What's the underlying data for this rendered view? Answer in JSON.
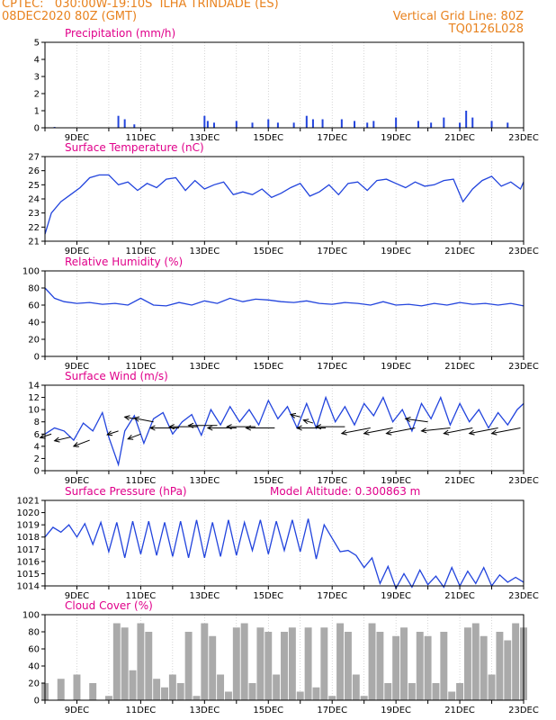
{
  "header": {
    "line1": "CPTEC:   030:00W-19:10S  ILHA TRINDADE (ES)",
    "line2": "08DEC2020 80Z (GMT)",
    "grid_line": "Vertical Grid Line: 80Z",
    "run_id": "TQ0126L028"
  },
  "colors": {
    "header_text": "#e8821e",
    "panel_title": "#e0008a",
    "series_line": "#2244dd",
    "cloud_fill": "#aaaaaa",
    "wind_arrow": "#000000"
  },
  "x_ticks": [
    "9DEC",
    "11DEC",
    "13DEC",
    "15DEC",
    "17DEC",
    "19DEC",
    "21DEC",
    "23DEC"
  ],
  "chart_data": [
    {
      "id": "precip",
      "type": "bar",
      "title": "Precipitation (mm/h)",
      "ylim": [
        0,
        5
      ],
      "yticks": [
        0,
        1,
        2,
        3,
        4,
        5
      ],
      "x_ticks": [
        "9DEC",
        "11DEC",
        "13DEC",
        "15DEC",
        "17DEC",
        "19DEC",
        "21DEC",
        "23DEC"
      ],
      "x": [
        8.3,
        10.3,
        10.5,
        10.8,
        13.0,
        13.1,
        13.3,
        14.0,
        14.5,
        15.0,
        15.3,
        15.8,
        16.2,
        16.4,
        16.7,
        17.3,
        17.7,
        18.1,
        18.3,
        19.0,
        19.7,
        20.1,
        20.5,
        21.0,
        21.2,
        21.4,
        22.0,
        22.5
      ],
      "values": [
        0.05,
        0.7,
        0.5,
        0.2,
        0.7,
        0.4,
        0.3,
        0.4,
        0.3,
        0.5,
        0.3,
        0.3,
        0.7,
        0.5,
        0.5,
        0.5,
        0.4,
        0.3,
        0.4,
        0.6,
        0.4,
        0.3,
        0.6,
        0.3,
        1.0,
        0.6,
        0.4,
        0.3
      ]
    },
    {
      "id": "temp",
      "type": "line",
      "title": "Surface Temperature (nC)",
      "ylim": [
        21,
        27
      ],
      "yticks": [
        21,
        22,
        23,
        24,
        25,
        26,
        27
      ],
      "x_ticks": [
        "9DEC",
        "11DEC",
        "13DEC",
        "15DEC",
        "17DEC",
        "19DEC",
        "21DEC",
        "23DEC"
      ],
      "x": [
        8.0,
        8.2,
        8.5,
        8.8,
        9.1,
        9.4,
        9.7,
        10.0,
        10.3,
        10.6,
        10.9,
        11.2,
        11.5,
        11.8,
        12.1,
        12.4,
        12.7,
        13.0,
        13.3,
        13.6,
        13.9,
        14.2,
        14.5,
        14.8,
        15.1,
        15.4,
        15.7,
        16.0,
        16.3,
        16.6,
        16.9,
        17.2,
        17.5,
        17.8,
        18.1,
        18.4,
        18.7,
        19.0,
        19.3,
        19.6,
        19.9,
        20.2,
        20.5,
        20.8,
        21.1,
        21.4,
        21.7,
        22.0,
        22.3,
        22.6,
        22.9,
        23.0
      ],
      "values": [
        21.5,
        23.0,
        23.8,
        24.3,
        24.8,
        25.5,
        25.7,
        25.7,
        25.0,
        25.2,
        24.6,
        25.1,
        24.8,
        25.4,
        25.5,
        24.6,
        25.3,
        24.7,
        25.0,
        25.2,
        24.3,
        24.5,
        24.3,
        24.7,
        24.1,
        24.4,
        24.8,
        25.1,
        24.2,
        24.5,
        25.0,
        24.3,
        25.1,
        25.2,
        24.6,
        25.3,
        25.4,
        25.1,
        24.8,
        25.2,
        24.9,
        25.0,
        25.3,
        25.4,
        23.8,
        24.7,
        25.3,
        25.6,
        24.9,
        25.2,
        24.7,
        25.2
      ]
    },
    {
      "id": "rh",
      "type": "line",
      "title": "Relative Humidity (%)",
      "ylim": [
        0,
        100
      ],
      "yticks": [
        0,
        20,
        40,
        60,
        80,
        100
      ],
      "x_ticks": [
        "9DEC",
        "11DEC",
        "13DEC",
        "15DEC",
        "17DEC",
        "19DEC",
        "21DEC",
        "23DEC"
      ],
      "x": [
        8.0,
        8.3,
        8.6,
        9.0,
        9.4,
        9.8,
        10.2,
        10.6,
        11.0,
        11.4,
        11.8,
        12.2,
        12.6,
        13.0,
        13.4,
        13.8,
        14.2,
        14.6,
        15.0,
        15.4,
        15.8,
        16.2,
        16.6,
        17.0,
        17.4,
        17.8,
        18.2,
        18.6,
        19.0,
        19.4,
        19.8,
        20.2,
        20.6,
        21.0,
        21.4,
        21.8,
        22.2,
        22.6,
        23.0
      ],
      "values": [
        80,
        68,
        64,
        62,
        63,
        61,
        62,
        60,
        68,
        60,
        59,
        63,
        60,
        65,
        62,
        68,
        64,
        67,
        66,
        64,
        63,
        65,
        62,
        61,
        63,
        62,
        60,
        64,
        60,
        61,
        59,
        62,
        60,
        63,
        61,
        62,
        60,
        62,
        59
      ]
    },
    {
      "id": "wind",
      "type": "line",
      "title": "Surface Wind (m/s)",
      "ylim": [
        0,
        14
      ],
      "yticks": [
        0,
        2,
        4,
        6,
        8,
        10,
        12,
        14
      ],
      "x_ticks": [
        "9DEC",
        "11DEC",
        "13DEC",
        "15DEC",
        "17DEC",
        "19DEC",
        "21DEC",
        "23DEC"
      ],
      "x": [
        8.0,
        8.3,
        8.6,
        8.9,
        9.2,
        9.5,
        9.8,
        10.0,
        10.3,
        10.5,
        10.8,
        11.1,
        11.4,
        11.7,
        12.0,
        12.3,
        12.6,
        12.9,
        13.2,
        13.5,
        13.8,
        14.1,
        14.4,
        14.7,
        15.0,
        15.3,
        15.6,
        15.9,
        16.2,
        16.5,
        16.8,
        17.1,
        17.4,
        17.7,
        18.0,
        18.3,
        18.6,
        18.9,
        19.2,
        19.5,
        19.8,
        20.1,
        20.4,
        20.7,
        21.0,
        21.3,
        21.6,
        21.9,
        22.2,
        22.5,
        22.8,
        23.0
      ],
      "values": [
        6.0,
        7.0,
        6.5,
        5.0,
        7.8,
        6.5,
        9.5,
        5.5,
        1.0,
        6.5,
        9.0,
        4.5,
        8.5,
        9.5,
        6.0,
        8.0,
        9.2,
        5.8,
        10.0,
        7.5,
        10.5,
        8.0,
        10.0,
        7.5,
        11.5,
        8.5,
        10.5,
        7.0,
        11.0,
        7.0,
        12.0,
        8.0,
        10.5,
        7.5,
        11.0,
        9.0,
        12.0,
        8.0,
        10.0,
        6.5,
        11.0,
        8.5,
        12.0,
        7.5,
        11.0,
        8.0,
        10.0,
        7.0,
        9.5,
        7.5,
        10.0,
        11.0
      ],
      "arrows": [
        {
          "x": 8.2,
          "y": 6.0,
          "dx": -0.35,
          "dy": -0.6
        },
        {
          "x": 8.8,
          "y": 5.5,
          "dx": -0.5,
          "dy": -0.6
        },
        {
          "x": 9.4,
          "y": 5.0,
          "dx": -0.5,
          "dy": -1.0
        },
        {
          "x": 10.3,
          "y": 6.5,
          "dx": -0.35,
          "dy": -0.6
        },
        {
          "x": 10.8,
          "y": 8.5,
          "dx": -0.3,
          "dy": 0.3
        },
        {
          "x": 11.0,
          "y": 6.0,
          "dx": -0.4,
          "dy": -0.8
        },
        {
          "x": 11.4,
          "y": 8.0,
          "dx": -0.6,
          "dy": 0.6
        },
        {
          "x": 12.2,
          "y": 7.0,
          "dx": -0.9,
          "dy": 0.0
        },
        {
          "x": 12.8,
          "y": 7.2,
          "dx": -0.9,
          "dy": 0.0
        },
        {
          "x": 13.4,
          "y": 7.4,
          "dx": -0.9,
          "dy": 0.0
        },
        {
          "x": 14.0,
          "y": 7.0,
          "dx": -0.9,
          "dy": 0.0
        },
        {
          "x": 14.6,
          "y": 7.2,
          "dx": -0.9,
          "dy": 0.0
        },
        {
          "x": 15.2,
          "y": 7.0,
          "dx": -0.9,
          "dy": 0.0
        },
        {
          "x": 16.0,
          "y": 8.8,
          "dx": -0.3,
          "dy": 0.4
        },
        {
          "x": 16.4,
          "y": 7.8,
          "dx": -0.3,
          "dy": 0.5
        },
        {
          "x": 16.8,
          "y": 7.0,
          "dx": -0.9,
          "dy": 0.0
        },
        {
          "x": 17.4,
          "y": 7.2,
          "dx": -0.9,
          "dy": 0.0
        },
        {
          "x": 18.2,
          "y": 7.0,
          "dx": -0.9,
          "dy": -0.9
        },
        {
          "x": 18.9,
          "y": 7.0,
          "dx": -0.9,
          "dy": -0.9
        },
        {
          "x": 19.6,
          "y": 7.0,
          "dx": -0.9,
          "dy": -0.9
        },
        {
          "x": 20.0,
          "y": 8.0,
          "dx": -0.7,
          "dy": 0.5
        },
        {
          "x": 20.7,
          "y": 7.0,
          "dx": -0.9,
          "dy": -0.5
        },
        {
          "x": 21.4,
          "y": 7.0,
          "dx": -0.9,
          "dy": -0.9
        },
        {
          "x": 22.2,
          "y": 7.0,
          "dx": -0.9,
          "dy": -0.9
        },
        {
          "x": 22.9,
          "y": 7.0,
          "dx": -0.9,
          "dy": -0.9
        }
      ]
    },
    {
      "id": "pres",
      "type": "line",
      "title": "Surface Pressure (hPa)",
      "annotation": "Model Altitude: 0.300863 m",
      "ylim": [
        1014,
        1021
      ],
      "yticks": [
        1014,
        1015,
        1016,
        1017,
        1018,
        1019,
        1020,
        1021
      ],
      "x_ticks": [
        "9DEC",
        "11DEC",
        "13DEC",
        "15DEC",
        "17DEC",
        "19DEC",
        "21DEC",
        "23DEC"
      ],
      "x": [
        8.0,
        8.25,
        8.5,
        8.75,
        9.0,
        9.25,
        9.5,
        9.75,
        10.0,
        10.25,
        10.5,
        10.75,
        11.0,
        11.25,
        11.5,
        11.75,
        12.0,
        12.25,
        12.5,
        12.75,
        13.0,
        13.25,
        13.5,
        13.75,
        14.0,
        14.25,
        14.5,
        14.75,
        15.0,
        15.25,
        15.5,
        15.75,
        16.0,
        16.25,
        16.5,
        16.75,
        17.0,
        17.25,
        17.5,
        17.75,
        18.0,
        18.25,
        18.5,
        18.75,
        19.0,
        19.25,
        19.5,
        19.75,
        20.0,
        20.25,
        20.5,
        20.75,
        21.0,
        21.25,
        21.5,
        21.75,
        22.0,
        22.25,
        22.5,
        22.75,
        23.0
      ],
      "values": [
        1018.0,
        1018.8,
        1018.4,
        1019.0,
        1018.0,
        1019.1,
        1017.4,
        1019.2,
        1016.8,
        1019.2,
        1016.3,
        1019.3,
        1016.6,
        1019.3,
        1016.5,
        1019.2,
        1016.4,
        1019.3,
        1016.3,
        1019.4,
        1016.3,
        1019.2,
        1016.4,
        1019.4,
        1016.5,
        1019.2,
        1016.9,
        1019.4,
        1016.6,
        1019.3,
        1016.9,
        1019.4,
        1016.8,
        1019.5,
        1016.2,
        1019.0,
        1017.9,
        1016.8,
        1016.9,
        1016.5,
        1015.5,
        1016.3,
        1014.2,
        1015.6,
        1013.8,
        1015.0,
        1013.9,
        1015.3,
        1014.1,
        1014.8,
        1013.9,
        1015.5,
        1014.0,
        1015.2,
        1014.2,
        1015.5,
        1014.0,
        1014.9,
        1014.3,
        1014.7,
        1014.3
      ]
    },
    {
      "id": "cloud",
      "type": "area",
      "title": "Cloud Cover (%)",
      "ylim": [
        0,
        100
      ],
      "yticks": [
        0,
        20,
        40,
        60,
        80,
        100
      ],
      "x_ticks": [
        "9DEC",
        "11DEC",
        "13DEC",
        "15DEC",
        "17DEC",
        "19DEC",
        "21DEC",
        "23DEC"
      ],
      "x": [
        8.0,
        8.5,
        9.0,
        9.5,
        10.0,
        10.25,
        10.5,
        10.75,
        11.0,
        11.25,
        11.5,
        11.75,
        12.0,
        12.25,
        12.5,
        12.75,
        13.0,
        13.25,
        13.5,
        13.75,
        14.0,
        14.25,
        14.5,
        14.75,
        15.0,
        15.25,
        15.5,
        15.75,
        16.0,
        16.25,
        16.5,
        16.75,
        17.0,
        17.25,
        17.5,
        17.75,
        18.0,
        18.25,
        18.5,
        18.75,
        19.0,
        19.25,
        19.5,
        19.75,
        20.0,
        20.25,
        20.5,
        20.75,
        21.0,
        21.25,
        21.5,
        21.75,
        22.0,
        22.25,
        22.5,
        22.75,
        23.0
      ],
      "values": [
        20,
        25,
        30,
        20,
        5,
        90,
        85,
        35,
        90,
        80,
        25,
        15,
        30,
        20,
        80,
        5,
        90,
        75,
        30,
        10,
        85,
        90,
        20,
        85,
        80,
        30,
        80,
        85,
        10,
        85,
        15,
        85,
        5,
        90,
        80,
        30,
        5,
        90,
        80,
        20,
        75,
        85,
        20,
        80,
        75,
        20,
        80,
        10,
        20,
        85,
        90,
        75,
        30,
        80,
        70,
        90,
        85
      ]
    }
  ]
}
